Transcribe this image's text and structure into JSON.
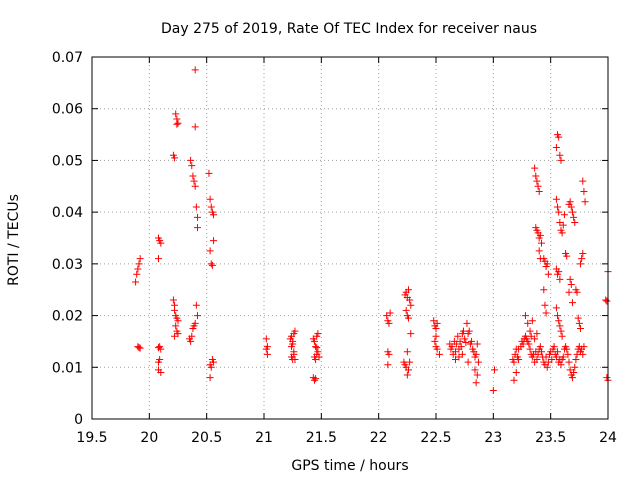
{
  "chart_data": {
    "type": "scatter",
    "title": "Day 275 of 2019, Rate Of TEC Index for receiver naus",
    "xlabel": "GPS time / hours",
    "ylabel": "ROTI / TECUs",
    "xlim": [
      19.5,
      24
    ],
    "ylim": [
      0,
      0.07
    ],
    "xticks": [
      "19.5",
      "20",
      "20.5",
      "21",
      "21.5",
      "22",
      "22.5",
      "23",
      "23.5",
      "24"
    ],
    "yticks": [
      "0",
      "0.01",
      "0.02",
      "0.03",
      "0.04",
      "0.05",
      "0.06",
      "0.07"
    ],
    "grid": true,
    "marker": "+",
    "color": "#ff0000",
    "points": [
      [
        19.88,
        0.0265
      ],
      [
        19.89,
        0.028
      ],
      [
        19.9,
        0.029
      ],
      [
        19.91,
        0.03
      ],
      [
        19.92,
        0.031
      ],
      [
        19.9,
        0.014
      ],
      [
        19.91,
        0.0138
      ],
      [
        19.92,
        0.0137
      ],
      [
        20.08,
        0.035
      ],
      [
        20.09,
        0.0345
      ],
      [
        20.1,
        0.034
      ],
      [
        20.08,
        0.031
      ],
      [
        20.08,
        0.0138
      ],
      [
        20.09,
        0.014
      ],
      [
        20.1,
        0.0135
      ],
      [
        20.08,
        0.011
      ],
      [
        20.09,
        0.0115
      ],
      [
        20.08,
        0.0095
      ],
      [
        20.1,
        0.009
      ],
      [
        20.21,
        0.051
      ],
      [
        20.22,
        0.0505
      ],
      [
        20.23,
        0.059
      ],
      [
        20.24,
        0.058
      ],
      [
        20.24,
        0.057
      ],
      [
        20.25,
        0.0572
      ],
      [
        20.21,
        0.023
      ],
      [
        20.22,
        0.022
      ],
      [
        20.22,
        0.021
      ],
      [
        20.23,
        0.02
      ],
      [
        20.24,
        0.0195
      ],
      [
        20.25,
        0.019
      ],
      [
        20.23,
        0.018
      ],
      [
        20.24,
        0.017
      ],
      [
        20.22,
        0.016
      ],
      [
        20.25,
        0.0165
      ],
      [
        20.35,
        0.0155
      ],
      [
        20.36,
        0.015
      ],
      [
        20.37,
        0.016
      ],
      [
        20.38,
        0.0175
      ],
      [
        20.39,
        0.018
      ],
      [
        20.4,
        0.0185
      ],
      [
        20.41,
        0.022
      ],
      [
        20.42,
        0.02
      ],
      [
        20.36,
        0.05
      ],
      [
        20.37,
        0.049
      ],
      [
        20.38,
        0.047
      ],
      [
        20.39,
        0.046
      ],
      [
        20.4,
        0.045
      ],
      [
        20.4,
        0.0565
      ],
      [
        20.4,
        0.0675
      ],
      [
        20.41,
        0.041
      ],
      [
        20.42,
        0.039
      ],
      [
        20.42,
        0.037
      ],
      [
        20.52,
        0.0475
      ],
      [
        20.53,
        0.0425
      ],
      [
        20.54,
        0.041
      ],
      [
        20.55,
        0.04
      ],
      [
        20.56,
        0.0395
      ],
      [
        20.53,
        0.0325
      ],
      [
        20.54,
        0.03
      ],
      [
        20.55,
        0.0297
      ],
      [
        20.56,
        0.0345
      ],
      [
        20.53,
        0.0105
      ],
      [
        20.54,
        0.01
      ],
      [
        20.55,
        0.0115
      ],
      [
        20.56,
        0.011
      ],
      [
        20.53,
        0.008
      ],
      [
        21.02,
        0.0155
      ],
      [
        21.03,
        0.014
      ],
      [
        21.02,
        0.0135
      ],
      [
        21.03,
        0.0125
      ],
      [
        21.23,
        0.0155
      ],
      [
        21.24,
        0.016
      ],
      [
        21.25,
        0.015
      ],
      [
        21.26,
        0.0165
      ],
      [
        21.27,
        0.017
      ],
      [
        21.24,
        0.014
      ],
      [
        21.25,
        0.0145
      ],
      [
        21.26,
        0.013
      ],
      [
        21.24,
        0.012
      ],
      [
        21.25,
        0.0115
      ],
      [
        21.27,
        0.0115
      ],
      [
        21.26,
        0.0125
      ],
      [
        21.43,
        0.0155
      ],
      [
        21.44,
        0.015
      ],
      [
        21.46,
        0.016
      ],
      [
        21.47,
        0.0165
      ],
      [
        21.45,
        0.014
      ],
      [
        21.46,
        0.0138
      ],
      [
        21.47,
        0.013
      ],
      [
        21.44,
        0.012
      ],
      [
        21.45,
        0.0115
      ],
      [
        21.46,
        0.0125
      ],
      [
        21.48,
        0.012
      ],
      [
        21.43,
        0.008
      ],
      [
        21.44,
        0.0075
      ],
      [
        21.45,
        0.0078
      ],
      [
        22.07,
        0.02
      ],
      [
        22.08,
        0.019
      ],
      [
        22.09,
        0.0185
      ],
      [
        22.1,
        0.0205
      ],
      [
        22.08,
        0.013
      ],
      [
        22.09,
        0.0125
      ],
      [
        22.08,
        0.0105
      ],
      [
        22.23,
        0.024
      ],
      [
        22.24,
        0.0245
      ],
      [
        22.25,
        0.0235
      ],
      [
        22.26,
        0.025
      ],
      [
        22.27,
        0.023
      ],
      [
        22.28,
        0.022
      ],
      [
        22.24,
        0.021
      ],
      [
        22.25,
        0.02
      ],
      [
        22.26,
        0.0195
      ],
      [
        22.28,
        0.0165
      ],
      [
        22.25,
        0.013
      ],
      [
        22.22,
        0.011
      ],
      [
        22.23,
        0.0105
      ],
      [
        22.24,
        0.01
      ],
      [
        22.26,
        0.0095
      ],
      [
        22.27,
        0.011
      ],
      [
        22.25,
        0.0085
      ],
      [
        22.48,
        0.019
      ],
      [
        22.49,
        0.018
      ],
      [
        22.5,
        0.0175
      ],
      [
        22.51,
        0.0185
      ],
      [
        22.5,
        0.016
      ],
      [
        22.49,
        0.015
      ],
      [
        22.5,
        0.014
      ],
      [
        22.51,
        0.0135
      ],
      [
        22.53,
        0.0125
      ],
      [
        22.62,
        0.0145
      ],
      [
        22.63,
        0.0135
      ],
      [
        22.64,
        0.014
      ],
      [
        22.65,
        0.0125
      ],
      [
        22.66,
        0.015
      ],
      [
        22.67,
        0.013
      ],
      [
        22.68,
        0.0145
      ],
      [
        22.69,
        0.016
      ],
      [
        22.7,
        0.0135
      ],
      [
        22.71,
        0.015
      ],
      [
        22.72,
        0.014
      ],
      [
        22.73,
        0.0165
      ],
      [
        22.74,
        0.017
      ],
      [
        22.75,
        0.0155
      ],
      [
        22.76,
        0.0148
      ],
      [
        22.77,
        0.0185
      ],
      [
        22.78,
        0.0165
      ],
      [
        22.79,
        0.017
      ],
      [
        22.8,
        0.0145
      ],
      [
        22.81,
        0.015
      ],
      [
        22.82,
        0.0135
      ],
      [
        22.83,
        0.013
      ],
      [
        22.84,
        0.012
      ],
      [
        22.85,
        0.0125
      ],
      [
        22.86,
        0.0145
      ],
      [
        22.87,
        0.011
      ],
      [
        22.84,
        0.0095
      ],
      [
        22.86,
        0.0085
      ],
      [
        22.85,
        0.007
      ],
      [
        22.67,
        0.0115
      ],
      [
        22.7,
        0.012
      ],
      [
        22.73,
        0.0125
      ],
      [
        22.78,
        0.011
      ],
      [
        23.0,
        0.0055
      ],
      [
        23.01,
        0.0095
      ],
      [
        23.17,
        0.0115
      ],
      [
        23.18,
        0.011
      ],
      [
        23.19,
        0.0125
      ],
      [
        23.2,
        0.0135
      ],
      [
        23.21,
        0.012
      ],
      [
        23.22,
        0.0115
      ],
      [
        23.18,
        0.0075
      ],
      [
        23.2,
        0.009
      ],
      [
        23.22,
        0.0135
      ],
      [
        23.24,
        0.014
      ],
      [
        23.25,
        0.015
      ],
      [
        23.26,
        0.0145
      ],
      [
        23.27,
        0.0155
      ],
      [
        23.28,
        0.016
      ],
      [
        23.29,
        0.0155
      ],
      [
        23.3,
        0.015
      ],
      [
        23.31,
        0.0145
      ],
      [
        23.32,
        0.0135
      ],
      [
        23.33,
        0.0125
      ],
      [
        23.34,
        0.012
      ],
      [
        23.35,
        0.0125
      ],
      [
        23.36,
        0.011
      ],
      [
        23.37,
        0.013
      ],
      [
        23.38,
        0.0115
      ],
      [
        23.39,
        0.0125
      ],
      [
        23.4,
        0.0135
      ],
      [
        23.41,
        0.014
      ],
      [
        23.42,
        0.013
      ],
      [
        23.43,
        0.012
      ],
      [
        23.44,
        0.011
      ],
      [
        23.45,
        0.0105
      ],
      [
        23.46,
        0.012
      ],
      [
        23.47,
        0.01
      ],
      [
        23.48,
        0.011
      ],
      [
        23.49,
        0.0125
      ],
      [
        23.5,
        0.013
      ],
      [
        23.51,
        0.0115
      ],
      [
        23.52,
        0.0135
      ],
      [
        23.53,
        0.014
      ],
      [
        23.54,
        0.0125
      ],
      [
        23.55,
        0.012
      ],
      [
        23.56,
        0.013
      ],
      [
        23.57,
        0.011
      ],
      [
        23.58,
        0.0115
      ],
      [
        23.59,
        0.0105
      ],
      [
        23.6,
        0.0115
      ],
      [
        23.61,
        0.012
      ],
      [
        23.62,
        0.0135
      ],
      [
        23.63,
        0.014
      ],
      [
        23.64,
        0.0135
      ],
      [
        23.65,
        0.0125
      ],
      [
        23.66,
        0.011
      ],
      [
        23.67,
        0.0095
      ],
      [
        23.68,
        0.0085
      ],
      [
        23.69,
        0.008
      ],
      [
        23.7,
        0.009
      ],
      [
        23.71,
        0.01
      ],
      [
        23.72,
        0.0115
      ],
      [
        23.73,
        0.0125
      ],
      [
        23.74,
        0.0135
      ],
      [
        23.75,
        0.014
      ],
      [
        23.76,
        0.013
      ],
      [
        23.77,
        0.0135
      ],
      [
        23.78,
        0.0125
      ],
      [
        23.79,
        0.014
      ],
      [
        23.28,
        0.02
      ],
      [
        23.3,
        0.0185
      ],
      [
        23.32,
        0.017
      ],
      [
        23.33,
        0.016
      ],
      [
        23.34,
        0.019
      ],
      [
        23.36,
        0.0155
      ],
      [
        23.38,
        0.0165
      ],
      [
        23.36,
        0.0485
      ],
      [
        23.37,
        0.047
      ],
      [
        23.38,
        0.046
      ],
      [
        23.39,
        0.045
      ],
      [
        23.4,
        0.044
      ],
      [
        23.37,
        0.037
      ],
      [
        23.38,
        0.0365
      ],
      [
        23.39,
        0.036
      ],
      [
        23.4,
        0.035
      ],
      [
        23.41,
        0.0355
      ],
      [
        23.42,
        0.034
      ],
      [
        23.4,
        0.0325
      ],
      [
        23.41,
        0.031
      ],
      [
        23.44,
        0.031
      ],
      [
        23.45,
        0.0305
      ],
      [
        23.46,
        0.0295
      ],
      [
        23.47,
        0.03
      ],
      [
        23.48,
        0.028
      ],
      [
        23.45,
        0.022
      ],
      [
        23.46,
        0.0205
      ],
      [
        23.44,
        0.025
      ],
      [
        23.55,
        0.0525
      ],
      [
        23.56,
        0.055
      ],
      [
        23.57,
        0.0545
      ],
      [
        23.58,
        0.051
      ],
      [
        23.59,
        0.05
      ],
      [
        23.55,
        0.0425
      ],
      [
        23.56,
        0.041
      ],
      [
        23.57,
        0.04
      ],
      [
        23.58,
        0.038
      ],
      [
        23.59,
        0.0365
      ],
      [
        23.6,
        0.036
      ],
      [
        23.61,
        0.0375
      ],
      [
        23.62,
        0.0395
      ],
      [
        23.55,
        0.029
      ],
      [
        23.56,
        0.028
      ],
      [
        23.57,
        0.0285
      ],
      [
        23.58,
        0.027
      ],
      [
        23.55,
        0.0215
      ],
      [
        23.56,
        0.02
      ],
      [
        23.57,
        0.019
      ],
      [
        23.58,
        0.018
      ],
      [
        23.59,
        0.017
      ],
      [
        23.6,
        0.016
      ],
      [
        23.63,
        0.032
      ],
      [
        23.64,
        0.0315
      ],
      [
        23.66,
        0.0415
      ],
      [
        23.67,
        0.042
      ],
      [
        23.68,
        0.041
      ],
      [
        23.69,
        0.04
      ],
      [
        23.7,
        0.039
      ],
      [
        23.71,
        0.038
      ],
      [
        23.67,
        0.027
      ],
      [
        23.68,
        0.026
      ],
      [
        23.66,
        0.0245
      ],
      [
        23.69,
        0.0225
      ],
      [
        23.72,
        0.025
      ],
      [
        23.73,
        0.0245
      ],
      [
        23.74,
        0.0195
      ],
      [
        23.75,
        0.0185
      ],
      [
        23.76,
        0.0175
      ],
      [
        23.78,
        0.046
      ],
      [
        23.79,
        0.044
      ],
      [
        23.8,
        0.042
      ],
      [
        23.78,
        0.032
      ],
      [
        23.77,
        0.031
      ],
      [
        23.76,
        0.03
      ],
      [
        23.98,
        0.023
      ],
      [
        23.99,
        0.0228
      ],
      [
        24.0,
        0.0285
      ],
      [
        23.99,
        0.008
      ],
      [
        24.0,
        0.0075
      ]
    ]
  }
}
